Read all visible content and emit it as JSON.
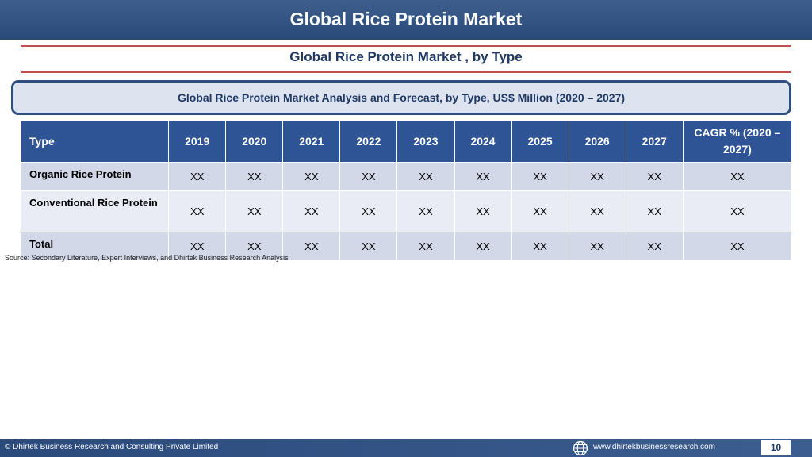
{
  "header": {
    "title": "Global Rice Protein Market"
  },
  "subtitle": "Global Rice Protein Market , by Type",
  "banner": "Global Rice Protein Market  Analysis and Forecast, by Type, US$ Million (2020 – 2027)",
  "table": {
    "headers": [
      "Type",
      "2019",
      "2020",
      "2021",
      "2022",
      "2023",
      "2024",
      "2025",
      "2026",
      "2027",
      "CAGR % (2020 – 2027)"
    ],
    "rows": [
      {
        "label": "Organic Rice Protein",
        "values": [
          "XX",
          "XX",
          "XX",
          "XX",
          "XX",
          "XX",
          "XX",
          "XX",
          "XX",
          "XX"
        ]
      },
      {
        "label": "Conventional Rice Protein",
        "values": [
          "XX",
          "XX",
          "XX",
          "XX",
          "XX",
          "XX",
          "XX",
          "XX",
          "XX",
          "XX"
        ]
      },
      {
        "label": "Total",
        "values": [
          "XX",
          "XX",
          "XX",
          "XX",
          "XX",
          "XX",
          "XX",
          "XX",
          "XX",
          "XX"
        ]
      }
    ]
  },
  "source": "Source: Secondary Literature, Expert Interviews, and Dhirtek Business Research Analysis",
  "footer": {
    "copyright": "© Dhirtek Business Research and Consulting Private Limited",
    "globe_icon": "globe-icon",
    "url": "www.dhirtekbusinessresearch.com",
    "page_number": "10"
  },
  "colors": {
    "header": "#2f4f7f",
    "table_header": "#2f5496",
    "rule": "#c0504d",
    "row_dark": "#d3d8e9",
    "row_light": "#e9ecf4"
  }
}
